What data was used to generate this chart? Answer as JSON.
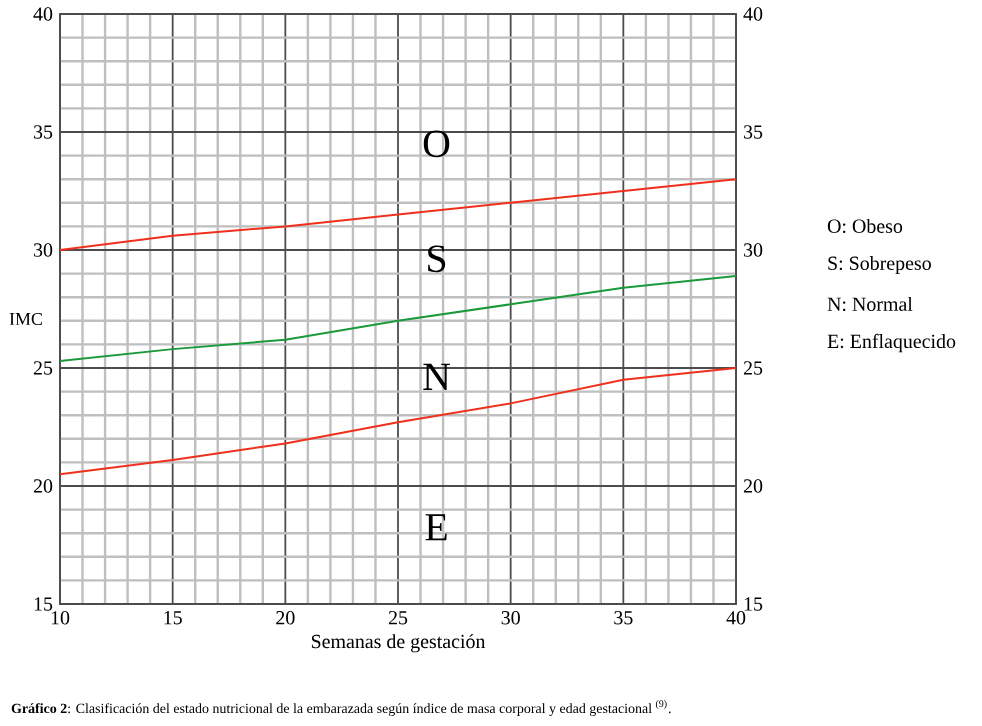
{
  "chart_data": {
    "type": "line",
    "xlabel": "Semanas de gestación",
    "ylabel": "IMC",
    "x": [
      10,
      15,
      20,
      25,
      30,
      35,
      40
    ],
    "series": [
      {
        "color": "#f0301c",
        "values": [
          30,
          30.6,
          31,
          31.5,
          32,
          32.5,
          33
        ]
      },
      {
        "color": "#1a9a3a",
        "values": [
          25.3,
          25.8,
          26.2,
          27,
          27.7,
          28.4,
          28.9
        ]
      },
      {
        "color": "#f0301c",
        "values": [
          20.5,
          21.1,
          21.8,
          22.7,
          23.5,
          24.5,
          25
        ]
      }
    ],
    "xlim": [
      10,
      40
    ],
    "xticks": [
      10,
      15,
      20,
      25,
      30,
      35,
      40
    ],
    "ylim": [
      15,
      40
    ],
    "yticks": [
      15,
      20,
      25,
      30,
      35,
      40
    ],
    "y2lim": [
      15,
      40
    ],
    "y2ticks": [
      15,
      20,
      25,
      30,
      35,
      40
    ],
    "grid": true,
    "marker": "none",
    "line_style": "solid",
    "annotations": [
      "O",
      "S",
      "N",
      "E",
      "O: Obeso",
      "S: Sobrepeso",
      "N: Normal",
      "E: Enflaquecido",
      "**Gráfico 2**: Clasificación del estado nutricional de la embarazada según índice de masa corporal y edad gestacional $^{(9)}$."
    ]
  }
}
